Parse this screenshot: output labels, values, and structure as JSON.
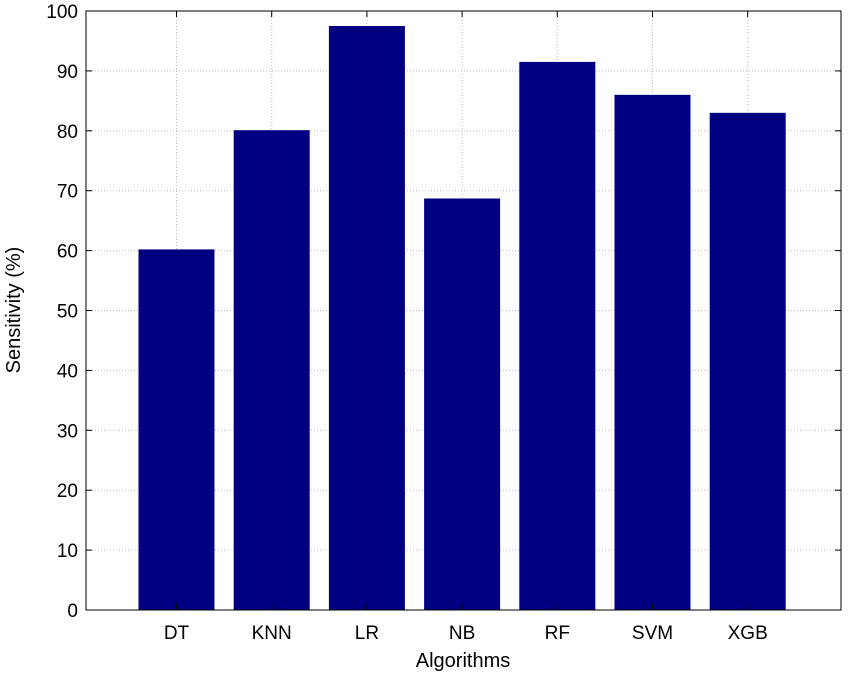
{
  "chart_data": {
    "type": "bar",
    "categories": [
      "DT",
      "KNN",
      "LR",
      "NB",
      "RF",
      "SVM",
      "XGB"
    ],
    "values": [
      60.2,
      80.1,
      97.5,
      68.7,
      91.5,
      86.0,
      83.0
    ],
    "xlabel": "Algorithms",
    "ylabel": "Sensitivity (%)",
    "ylim": [
      0,
      100
    ],
    "yticks": [
      0,
      10,
      20,
      30,
      40,
      50,
      60,
      70,
      80,
      90,
      100
    ],
    "grid": true,
    "bar_color": "#000080"
  }
}
